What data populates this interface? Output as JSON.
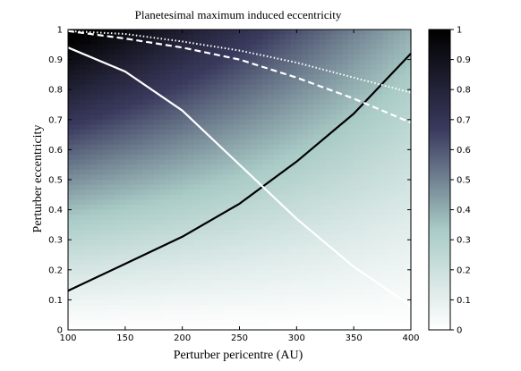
{
  "chart_data": {
    "type": "heatmap",
    "title": "Planetesimal maximum induced eccentricity",
    "xlabel": "Perturber pericentre (AU)",
    "ylabel": "Perturber eccentricity",
    "xlim": [
      100,
      400
    ],
    "ylim": [
      0,
      1
    ],
    "x_ticks": [
      "100",
      "150",
      "200",
      "250",
      "300",
      "350",
      "400"
    ],
    "y_ticks": [
      "0",
      "0.1",
      "0.2",
      "0.3",
      "0.4",
      "0.5",
      "0.6",
      "0.7",
      "0.8",
      "0.9",
      "1"
    ],
    "colorbar": {
      "range": [
        0,
        1
      ],
      "ticks": [
        "0",
        "0.1",
        "0.2",
        "0.3",
        "0.4",
        "0.5",
        "0.6",
        "0.7",
        "0.8",
        "0.9",
        "1"
      ],
      "colormap": [
        "#ffffff",
        "#a9cbc6",
        "#3a3a5e",
        "#000000"
      ]
    },
    "curves": [
      {
        "style": "solid",
        "color": "#000000",
        "x": [
          100,
          150,
          200,
          250,
          300,
          350,
          400
        ],
        "y": [
          0.13,
          0.22,
          0.31,
          0.42,
          0.56,
          0.72,
          0.92
        ]
      },
      {
        "style": "solid",
        "color": "#ffffff",
        "x": [
          100,
          150,
          200,
          250,
          300,
          350,
          400
        ],
        "y": [
          0.94,
          0.86,
          0.73,
          0.55,
          0.37,
          0.21,
          0.08
        ]
      },
      {
        "style": "dashed",
        "color": "#ffffff",
        "x": [
          100,
          150,
          200,
          250,
          300,
          350,
          400
        ],
        "y": [
          0.995,
          0.97,
          0.94,
          0.9,
          0.84,
          0.77,
          0.69
        ]
      },
      {
        "style": "dotted",
        "color": "#ffffff",
        "x": [
          100,
          150,
          200,
          250,
          300,
          350,
          400
        ],
        "y": [
          0.995,
          0.985,
          0.96,
          0.93,
          0.89,
          0.84,
          0.79
        ]
      }
    ]
  }
}
